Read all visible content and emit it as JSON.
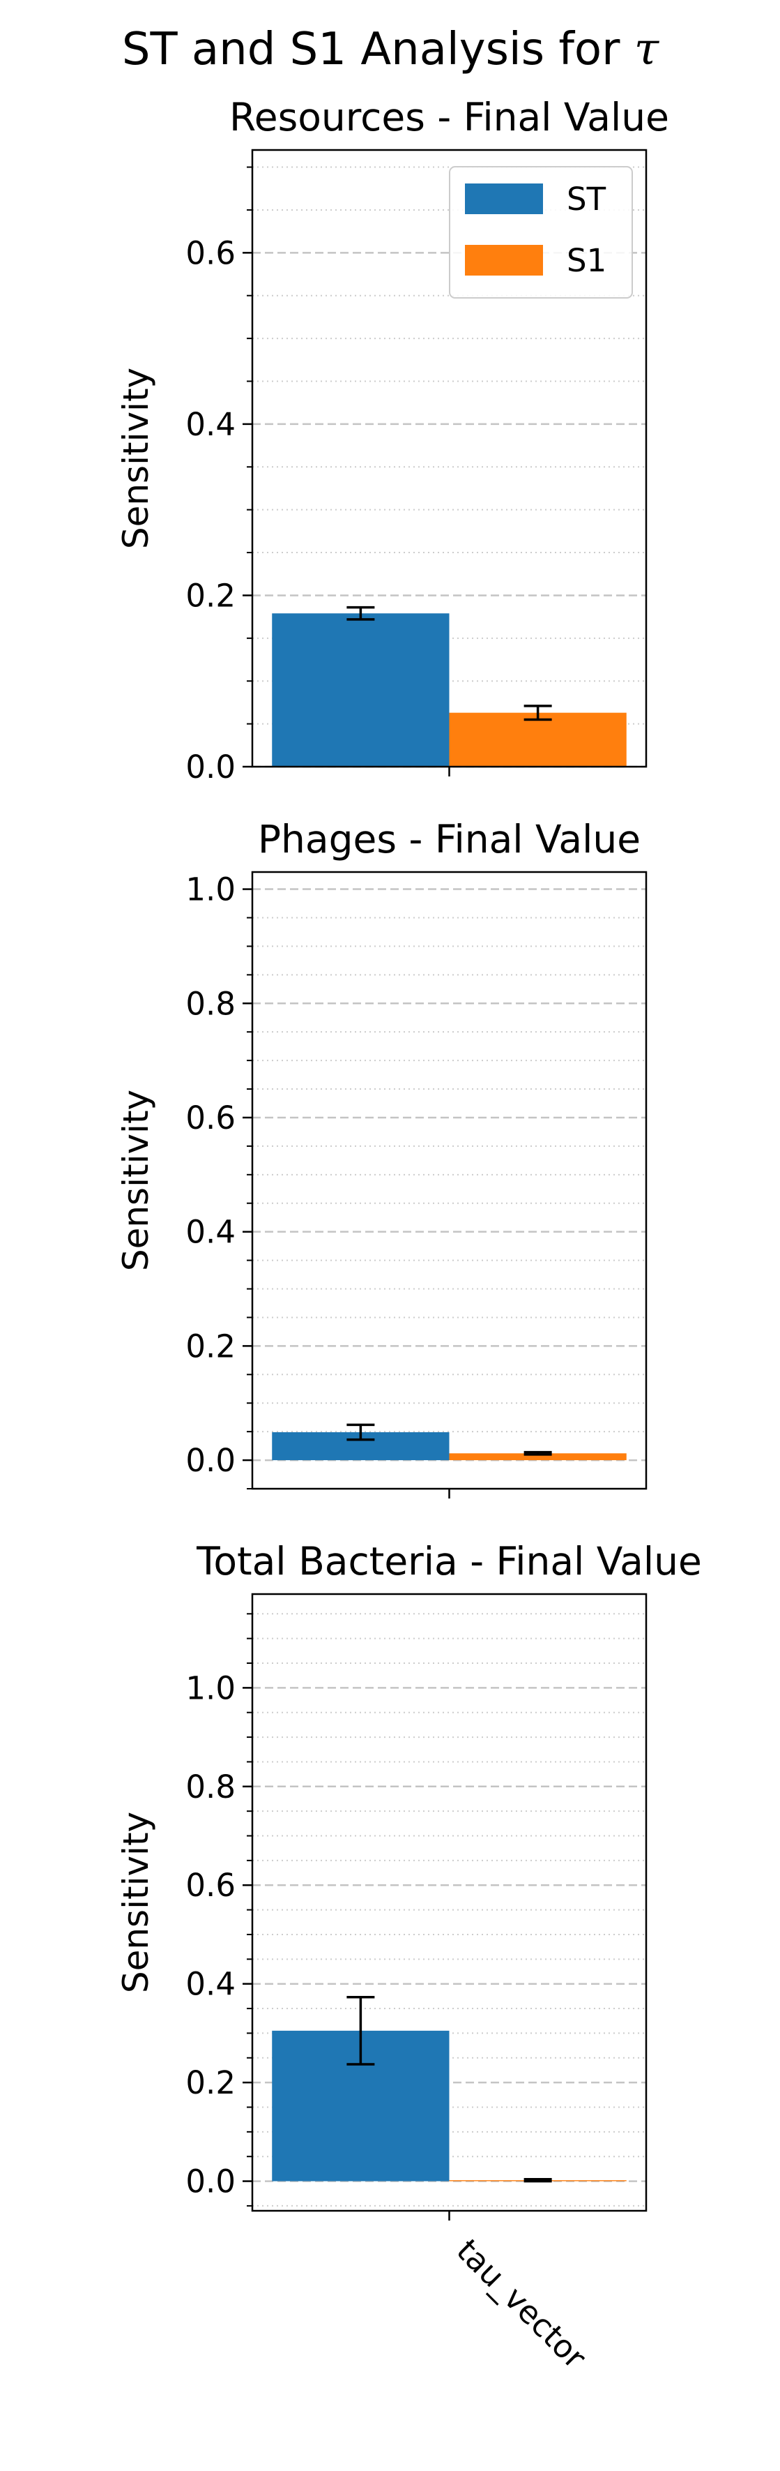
{
  "figure": {
    "suptitle_text": "ST and S1 Analysis for ",
    "suptitle_symbol": "τ"
  },
  "colors": {
    "ST": "#1f77b4",
    "S1": "#ff7f0e"
  },
  "chart_data": [
    {
      "type": "bar",
      "title": "Resources - Final Value",
      "ylabel": "Sensitivity",
      "categories": [
        "tau_vector"
      ],
      "ylim": [
        0,
        0.72
      ],
      "yticks": [
        0.0,
        0.2,
        0.4,
        0.6
      ],
      "ytick_labels": [
        "0.0",
        "0.2",
        "0.4",
        "0.6"
      ],
      "minor_step": 0.05,
      "grid": true,
      "legend": "top-right",
      "series": [
        {
          "name": "ST",
          "values": [
            0.179
          ],
          "err": [
            0.007
          ]
        },
        {
          "name": "S1",
          "values": [
            0.063
          ],
          "err": [
            0.008
          ]
        }
      ]
    },
    {
      "type": "bar",
      "title": "Phages - Final Value",
      "ylabel": "Sensitivity",
      "categories": [
        "tau_vector"
      ],
      "ylim": [
        -0.05,
        1.03
      ],
      "yticks": [
        0.0,
        0.2,
        0.4,
        0.6,
        0.8,
        1.0
      ],
      "ytick_labels": [
        "0.0",
        "0.2",
        "0.4",
        "0.6",
        "0.8",
        "1.0"
      ],
      "minor_step": 0.05,
      "grid": true,
      "series": [
        {
          "name": "ST",
          "values": [
            0.049
          ],
          "err": [
            0.013
          ]
        },
        {
          "name": "S1",
          "values": [
            0.012
          ],
          "err": [
            0.002
          ]
        }
      ]
    },
    {
      "type": "bar",
      "title": "Total Bacteria - Final Value",
      "ylabel": "Sensitivity",
      "categories": [
        "tau_vector"
      ],
      "ylim": [
        -0.06,
        1.19
      ],
      "yticks": [
        0.0,
        0.2,
        0.4,
        0.6,
        0.8,
        1.0
      ],
      "ytick_labels": [
        "0.0",
        "0.2",
        "0.4",
        "0.6",
        "0.8",
        "1.0"
      ],
      "minor_step": 0.05,
      "grid": true,
      "series": [
        {
          "name": "ST",
          "values": [
            0.305
          ],
          "err": [
            0.068
          ]
        },
        {
          "name": "S1",
          "values": [
            0.002
          ],
          "err": [
            0.002
          ]
        }
      ]
    }
  ]
}
